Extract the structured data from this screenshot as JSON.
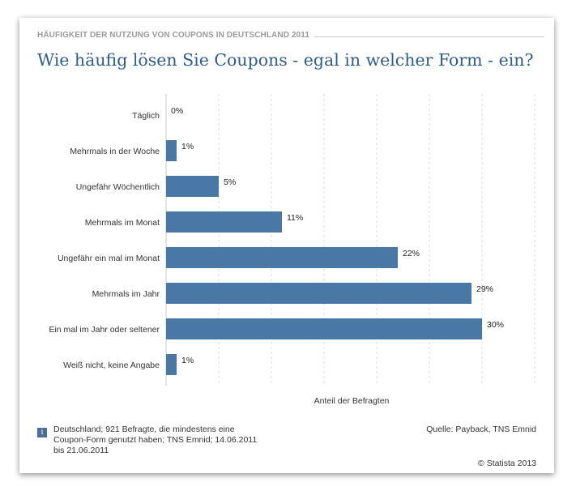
{
  "header": {
    "kicker": "HÄUFIGKEIT DER NUTZUNG VON COUPONS IN DEUTSCHLAND 2011",
    "title": "Wie häufig lösen Sie Coupons - egal in welcher Form - ein?"
  },
  "chart_data": {
    "type": "bar",
    "orientation": "horizontal",
    "categories": [
      "Täglich",
      "Mehrmals in der Woche",
      "Ungefähr Wöchentlich",
      "Mehrmals im Monat",
      "Ungefähr ein mal im Monat",
      "Mehrmals im Jahr",
      "Ein mal im Jahr oder seltener",
      "Weiß nicht, keine Angabe"
    ],
    "values": [
      0,
      1,
      5,
      11,
      22,
      29,
      30,
      1
    ],
    "value_labels": [
      "0%",
      "1%",
      "5%",
      "11%",
      "22%",
      "29%",
      "30%",
      "1%"
    ],
    "xlabel": "Anteil der Befragten",
    "xlim": [
      0,
      35
    ],
    "grid": "vertical dashed",
    "bar_color": "#4a78a6"
  },
  "footer": {
    "info_icon": "i",
    "note": "Deutschland; 921 Befragte, die mindestens eine Coupon-Form genutzt haben; TNS Emnid; 14.06.2011 bis 21.06.2011",
    "source": "Quelle: Payback, TNS Emnid",
    "copyright": "© Statista 2013"
  }
}
